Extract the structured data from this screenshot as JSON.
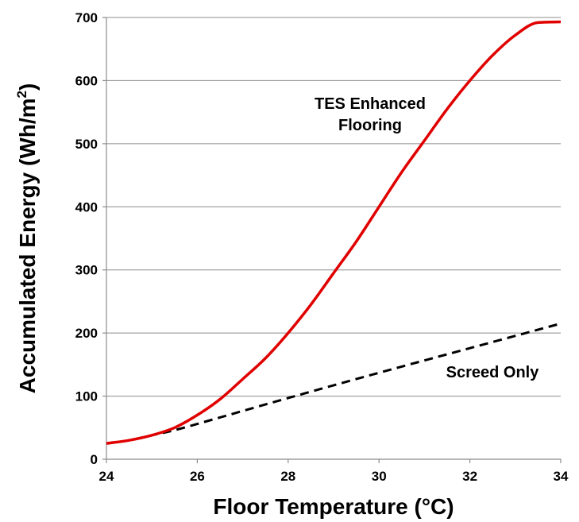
{
  "chart_data": {
    "type": "line",
    "title": "",
    "xlabel": "Floor Temperature (°C)",
    "ylabel_main": "Accumulated Energy (Wh/m",
    "ylabel_sup": "2",
    "ylabel_end": ")",
    "xlim": [
      24,
      34
    ],
    "ylim": [
      0,
      700
    ],
    "xticks": [
      24,
      26,
      28,
      30,
      32,
      34
    ],
    "yticks": [
      0,
      100,
      200,
      300,
      400,
      500,
      600,
      700
    ],
    "grid": "horizontal",
    "legend": "none",
    "annotations": {
      "tes_line1": "TES Enhanced",
      "tes_line2": "Flooring",
      "screed": "Screed Only"
    },
    "series": [
      {
        "id": "tes",
        "color": "#e00000",
        "style": "solid",
        "x": [
          24,
          24.5,
          25,
          25.5,
          26,
          26.5,
          27,
          27.5,
          28,
          28.5,
          29,
          29.5,
          30,
          30.5,
          31,
          31.5,
          32,
          32.5,
          33,
          33.5,
          34
        ],
        "y": [
          25,
          30,
          38,
          50,
          70,
          95,
          127,
          160,
          200,
          245,
          295,
          345,
          400,
          455,
          505,
          555,
          600,
          640,
          672,
          692,
          693
        ]
      },
      {
        "id": "screed",
        "color": "#000000",
        "style": "dashed",
        "x": [
          24,
          24.5,
          25,
          25.5,
          26,
          28,
          30,
          32,
          34
        ],
        "y": [
          25,
          30,
          38,
          46,
          56,
          97,
          137,
          176,
          215
        ]
      }
    ]
  }
}
